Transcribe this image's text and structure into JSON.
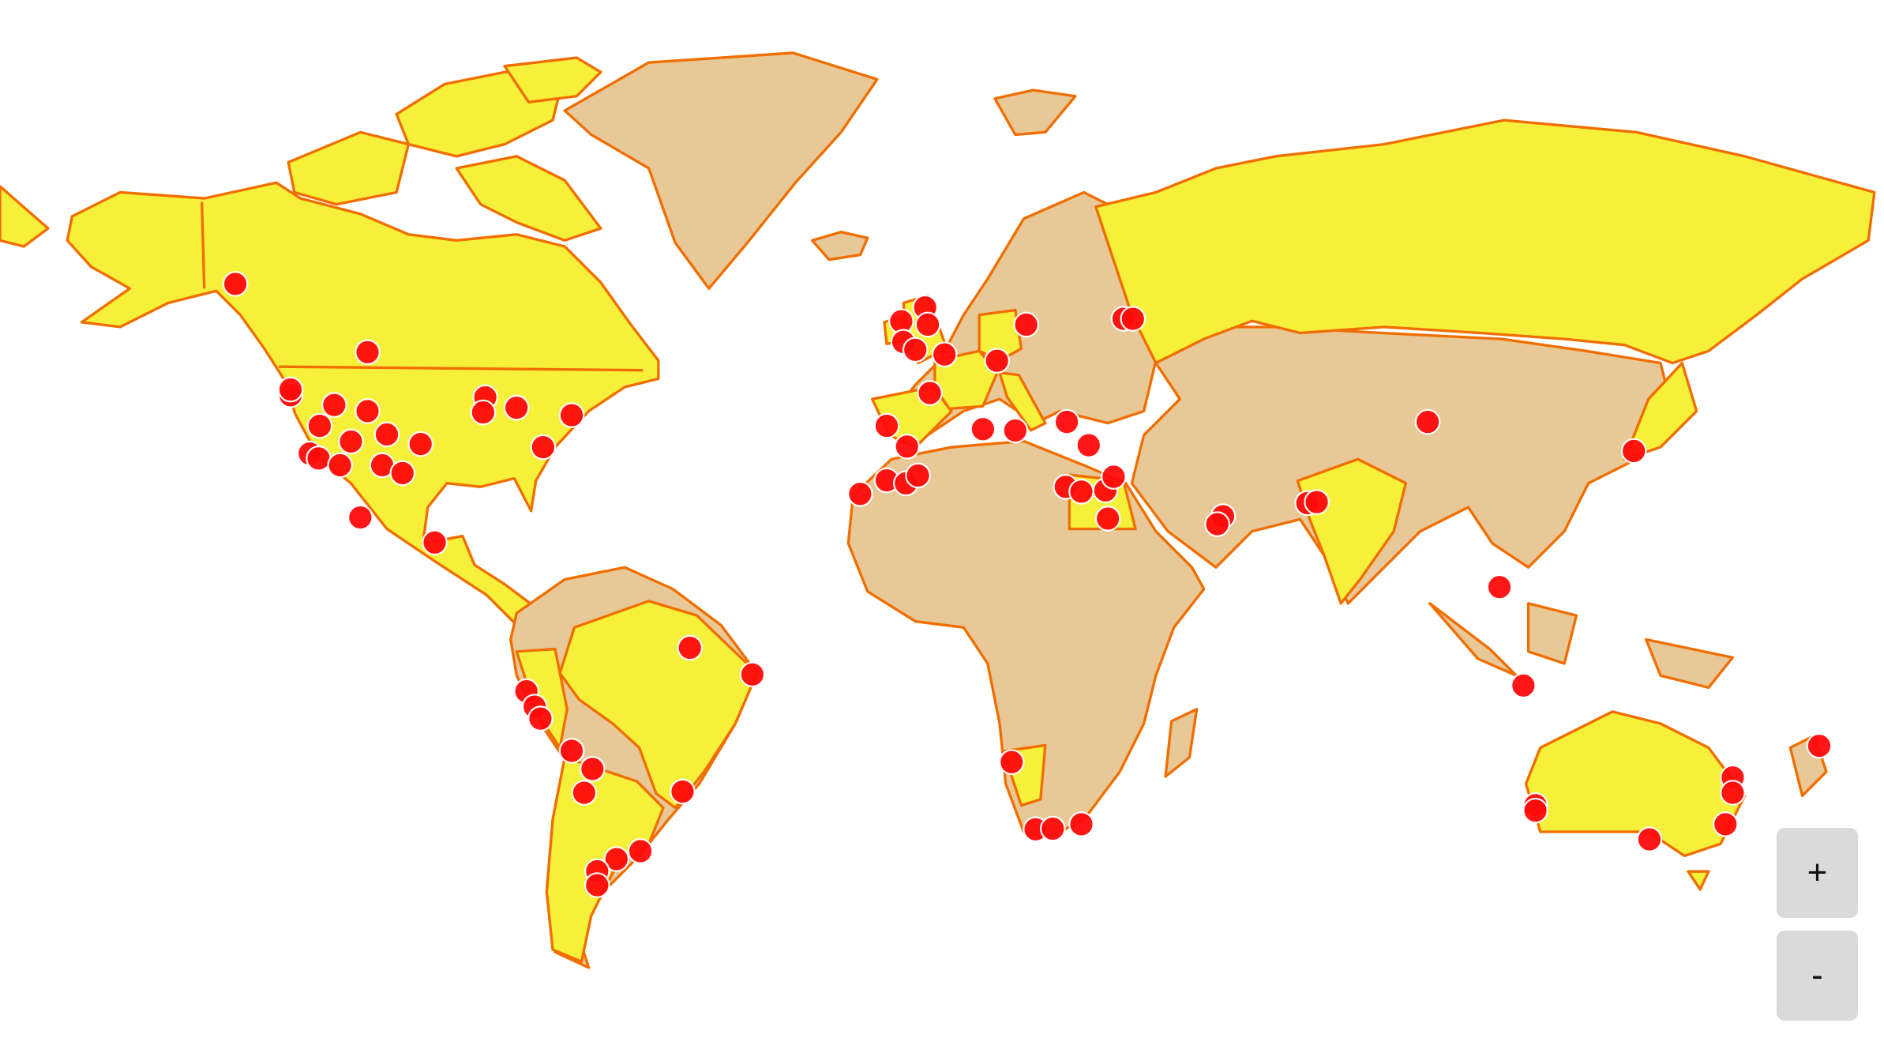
{
  "map": {
    "projection": "mercator",
    "colors": {
      "highlighted_country": "#f7f03a",
      "other_country": "#e8c896",
      "border": "#f06e00",
      "marker": "#ff0a0a"
    },
    "markers": [
      [
        56.2,
        -134.8
      ],
      [
        48.2,
        -109.4
      ],
      [
        42.4,
        -124.2
      ],
      [
        43.2,
        -124.2
      ],
      [
        41.0,
        -115.8
      ],
      [
        40.1,
        -109.4
      ],
      [
        37.9,
        -118.6
      ],
      [
        35.5,
        -112.6
      ],
      [
        36.6,
        -105.7
      ],
      [
        35.1,
        -99.2
      ],
      [
        33.6,
        -120.5
      ],
      [
        32.8,
        -118.8
      ],
      [
        31.7,
        -114.7
      ],
      [
        31.7,
        -106.6
      ],
      [
        30.4,
        -102.7
      ],
      [
        22.8,
        -110.8
      ],
      [
        18.3,
        -96.5
      ],
      [
        42.1,
        -86.8
      ],
      [
        39.9,
        -87.2
      ],
      [
        40.6,
        -80.8
      ],
      [
        39.5,
        -70.2
      ],
      [
        34.6,
        -75.7
      ],
      [
        -1.6,
        -47.5
      ],
      [
        -6.7,
        -35.5
      ],
      [
        -9.9,
        -78.9
      ],
      [
        -12.8,
        -77.3
      ],
      [
        -15.0,
        -76.2
      ],
      [
        -20.9,
        -70.2
      ],
      [
        -24.1,
        -66.2
      ],
      [
        -28.2,
        -67.8
      ],
      [
        -28.0,
        -48.9
      ],
      [
        -37.6,
        -57.0
      ],
      [
        -38.8,
        -61.6
      ],
      [
        -40.6,
        -65.3
      ],
      [
        -42.6,
        -65.3
      ],
      [
        52.0,
        -6.9
      ],
      [
        53.6,
        -2.3
      ],
      [
        51.6,
        -1.8
      ],
      [
        49.5,
        -6.5
      ],
      [
        48.5,
        -4.2
      ],
      [
        47.9,
        1.4
      ],
      [
        47.1,
        11.5
      ],
      [
        51.6,
        17.1
      ],
      [
        42.7,
        -1.4
      ],
      [
        37.9,
        -9.7
      ],
      [
        37.4,
        8.8
      ],
      [
        37.2,
        15.0
      ],
      [
        38.5,
        24.9
      ],
      [
        34.9,
        29.1
      ],
      [
        34.7,
        -5.8
      ],
      [
        26.9,
        -14.8
      ],
      [
        29.2,
        -9.7
      ],
      [
        28.7,
        -6.0
      ],
      [
        30.0,
        -3.7
      ],
      [
        28.1,
        24.7
      ],
      [
        27.3,
        27.7
      ],
      [
        27.5,
        32.3
      ],
      [
        29.8,
        33.9
      ],
      [
        22.6,
        32.8
      ],
      [
        52.3,
        35.8
      ],
      [
        52.3,
        37.6
      ],
      [
        23.0,
        54.9
      ],
      [
        21.6,
        53.8
      ],
      [
        25.3,
        71.1
      ],
      [
        25.5,
        72.9
      ],
      [
        38.5,
        94.2
      ],
      [
        34.0,
        133.8
      ],
      [
        10.0,
        108.0
      ],
      [
        -8.8,
        112.6
      ],
      [
        -22.9,
        14.3
      ],
      [
        -34.2,
        18.9
      ],
      [
        -34.1,
        22.2
      ],
      [
        -33.4,
        27.7
      ],
      [
        -30.3,
        114.9
      ],
      [
        -31.2,
        114.9
      ],
      [
        -35.8,
        136.8
      ],
      [
        -33.4,
        151.4
      ],
      [
        -25.6,
        152.8
      ],
      [
        -28.2,
        152.8
      ],
      [
        -20.0,
        169.4
      ]
    ]
  },
  "controls": {
    "zoom_in_label": "+",
    "zoom_out_label": "-"
  }
}
